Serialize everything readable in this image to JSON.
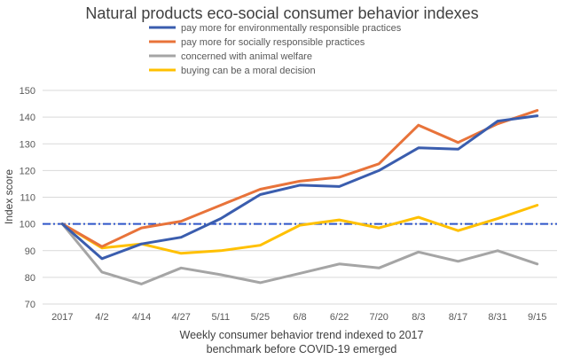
{
  "chart_data": {
    "type": "line",
    "title": "Natural products eco-social consumer behavior indexes",
    "xlabel_lines": [
      "Weekly consumer behavior trend indexed to 2017",
      "benchmark before COVID-19 emerged"
    ],
    "ylabel": "Index score",
    "ylim": [
      70,
      150
    ],
    "yticks": [
      70,
      80,
      90,
      100,
      110,
      120,
      130,
      140,
      150
    ],
    "grid": true,
    "legend_position": "top",
    "categories": [
      "2017",
      "4/2",
      "4/14",
      "4/27",
      "5/11",
      "5/25",
      "6/8",
      "6/22",
      "7/20",
      "8/3",
      "8/17",
      "8/31",
      "9/15"
    ],
    "reference_line": {
      "y": 100,
      "color": "#2E55C8",
      "style": "dash-dot"
    },
    "series": [
      {
        "name": "pay more for environmentally responsible practices",
        "color": "#3A5DAE",
        "values": [
          100,
          87,
          92.5,
          95,
          102,
          111,
          114.5,
          114,
          120,
          128.5,
          128,
          138.5,
          140.5
        ]
      },
      {
        "name": "pay more for socially responsible practices",
        "color": "#E8733A",
        "values": [
          100,
          91.5,
          98.5,
          101,
          107,
          113,
          116,
          117.5,
          122.5,
          137,
          130.5,
          137.5,
          142.5
        ]
      },
      {
        "name": "concerned with animal welfare",
        "color": "#A5A5A5",
        "values": [
          100,
          82,
          77.5,
          83.5,
          81,
          78,
          81.5,
          85,
          83.5,
          89.5,
          86,
          90,
          85
        ]
      },
      {
        "name": "buying can be a moral decision",
        "color": "#FFC000",
        "values": [
          100,
          91,
          92.5,
          89,
          90,
          92,
          99.5,
          101.5,
          98.5,
          102.5,
          97.5,
          102,
          107
        ]
      }
    ]
  }
}
